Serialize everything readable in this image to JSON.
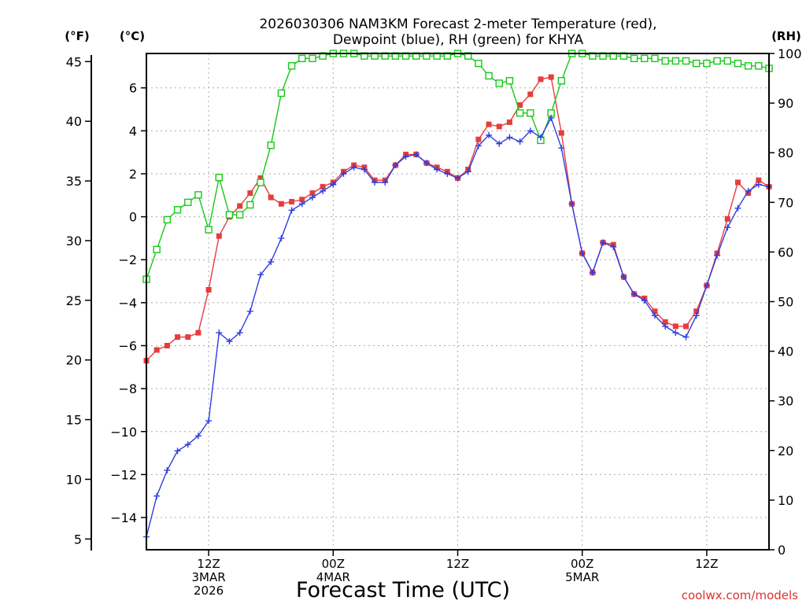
{
  "chart_data": {
    "type": "line",
    "title_line1": "2026030306 NAM3KM Forecast 2-meter Temperature (red),",
    "title_line2": "Dewpoint (blue), RH (green) for KHYA",
    "xlabel": "Forecast Time (UTC)",
    "credit": "coolwx.com/models",
    "left_unit_f": "(°F)",
    "left_unit_c": "(°C)",
    "right_unit": "(RH)",
    "hours": [
      0,
      1,
      2,
      3,
      4,
      5,
      6,
      7,
      8,
      9,
      10,
      11,
      12,
      13,
      14,
      15,
      16,
      17,
      18,
      19,
      20,
      21,
      22,
      23,
      24,
      25,
      26,
      27,
      28,
      29,
      30,
      31,
      32,
      33,
      34,
      35,
      36,
      37,
      38,
      39,
      40,
      41,
      42,
      43,
      44,
      45,
      46,
      47,
      48,
      49,
      50,
      51,
      52,
      53,
      54,
      55,
      56,
      57,
      58,
      59,
      60
    ],
    "x_ticks": [
      {
        "hour": 6,
        "lines": [
          "12Z",
          "3MAR",
          "2026"
        ]
      },
      {
        "hour": 18,
        "lines": [
          "00Z",
          "4MAR"
        ]
      },
      {
        "hour": 30,
        "lines": [
          "12Z"
        ]
      },
      {
        "hour": 42,
        "lines": [
          "00Z",
          "5MAR"
        ]
      },
      {
        "hour": 54,
        "lines": [
          "12Z"
        ]
      }
    ],
    "celsius_ticks": [
      6,
      4,
      2,
      0,
      -2,
      -4,
      -6,
      -8,
      -10,
      -12,
      -14
    ],
    "fahrenheit_ticks": [
      45,
      40,
      35,
      30,
      25,
      20,
      15,
      10,
      5
    ],
    "rh_ticks": [
      100,
      90,
      80,
      70,
      60,
      50,
      40,
      30,
      20,
      10,
      0
    ],
    "ylim_c": [
      -15.5,
      7.6
    ],
    "ylim_rh": [
      0,
      100
    ],
    "series": [
      {
        "name": "Temperature (°C)",
        "color": "#e83c3c",
        "marker": "filled-square",
        "axis": "celsius",
        "values": [
          -6.7,
          -6.2,
          -6.0,
          -5.6,
          -5.6,
          -5.4,
          -3.4,
          -0.9,
          0.0,
          0.5,
          1.1,
          1.8,
          0.9,
          0.6,
          0.7,
          0.8,
          1.1,
          1.4,
          1.6,
          2.1,
          2.4,
          2.3,
          1.7,
          1.7,
          2.4,
          2.9,
          2.9,
          2.5,
          2.3,
          2.1,
          1.8,
          2.2,
          3.6,
          4.3,
          4.2,
          4.4,
          5.2,
          5.7,
          6.4,
          6.5,
          3.9,
          0.6,
          -1.7,
          -2.6,
          -1.2,
          -1.3,
          -2.8,
          -3.6,
          -3.8,
          -4.4,
          -4.9,
          -5.1,
          -5.1,
          -4.4,
          -3.2,
          -1.7,
          -0.1,
          1.6,
          1.1,
          1.7,
          1.4
        ]
      },
      {
        "name": "Dewpoint (°C)",
        "color": "#2d3ee0",
        "marker": "plus",
        "axis": "celsius",
        "values": [
          -14.9,
          -13.0,
          -11.8,
          -10.9,
          -10.6,
          -10.2,
          -9.5,
          -5.4,
          -5.8,
          -5.4,
          -4.4,
          -2.7,
          -2.1,
          -1.0,
          0.3,
          0.6,
          0.9,
          1.2,
          1.5,
          2.0,
          2.3,
          2.2,
          1.6,
          1.6,
          2.4,
          2.8,
          2.9,
          2.5,
          2.2,
          2.0,
          1.8,
          2.1,
          3.3,
          3.8,
          3.4,
          3.7,
          3.5,
          4.0,
          3.7,
          4.6,
          3.2,
          0.6,
          -1.7,
          -2.6,
          -1.2,
          -1.4,
          -2.8,
          -3.6,
          -3.9,
          -4.6,
          -5.1,
          -5.4,
          -5.6,
          -4.6,
          -3.2,
          -1.8,
          -0.5,
          0.4,
          1.2,
          1.5,
          1.4
        ]
      },
      {
        "name": "RH (%)",
        "color": "#18c818",
        "marker": "open-square",
        "axis": "rh",
        "values": [
          54.5,
          60.5,
          66.5,
          68.5,
          70.0,
          71.5,
          64.5,
          75.0,
          67.5,
          67.5,
          69.5,
          74.0,
          81.5,
          92.0,
          97.5,
          99.0,
          99.0,
          99.5,
          100,
          100,
          100,
          99.5,
          99.5,
          99.5,
          99.5,
          99.5,
          99.5,
          99.5,
          99.5,
          99.5,
          100,
          99.5,
          98.0,
          95.5,
          94.0,
          94.5,
          88.0,
          88.0,
          82.5,
          88.0,
          94.5,
          100,
          100,
          99.5,
          99.5,
          99.5,
          99.5,
          99.0,
          99.0,
          99.0,
          98.5,
          98.5,
          98.5,
          98.0,
          98.0,
          98.5,
          98.5,
          98.0,
          97.5,
          97.5,
          97.0
        ]
      }
    ]
  }
}
